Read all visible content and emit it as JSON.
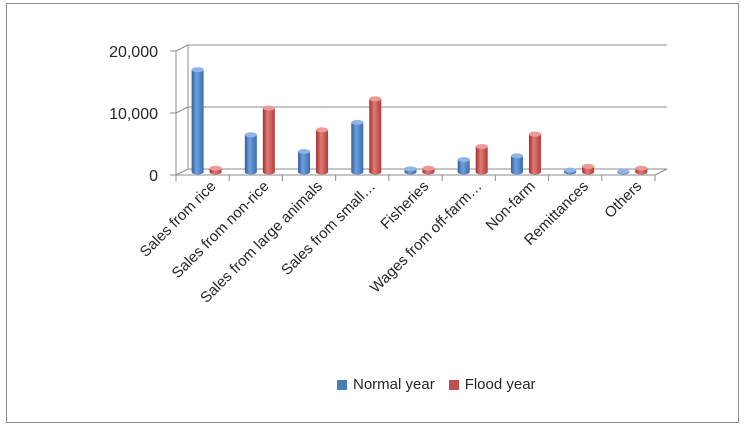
{
  "chart_data": {
    "type": "bar",
    "categories": [
      "Sales from rice",
      "Sales from non-rice",
      "Sales from large animals",
      "Sales from small…",
      "Fisheries",
      "Wages from off-farm…",
      "Non-farm",
      "Remittances",
      "Others"
    ],
    "series": [
      {
        "name": "Normal year",
        "color": "#4a7ebb",
        "values": [
          16500,
          6000,
          3300,
          8000,
          500,
          2000,
          2600,
          300,
          100
        ]
      },
      {
        "name": "Flood year",
        "color": "#c0504d",
        "values": [
          600,
          10300,
          6800,
          11800,
          600,
          4100,
          6100,
          900,
          600
        ]
      }
    ],
    "yticks": [
      "0",
      "10,000",
      "20,000"
    ],
    "ytick_values": [
      0,
      10000,
      20000
    ],
    "ylim": [
      0,
      20000
    ],
    "grid": true,
    "legend_position": "bottom"
  }
}
